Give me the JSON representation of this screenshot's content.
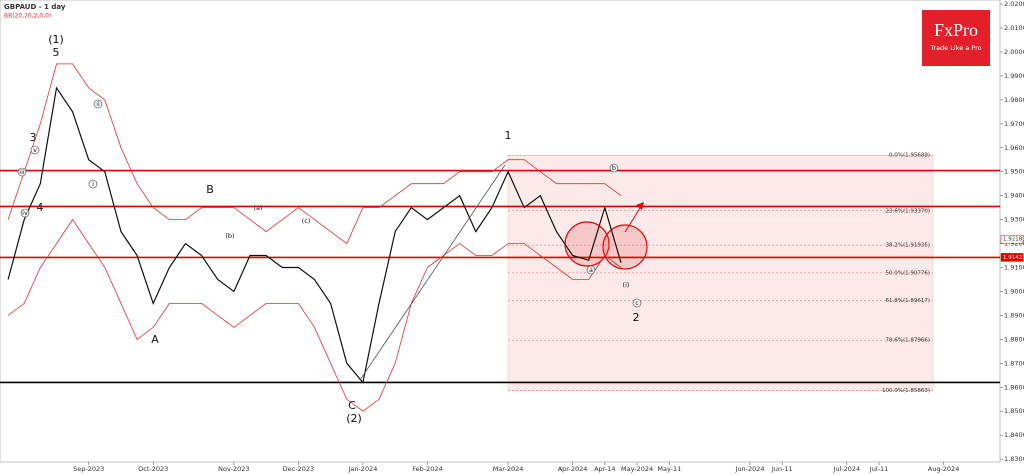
{
  "header": {
    "title": "GBPAUD - 1 day",
    "indicator": "BB(20,20,2,0,0)"
  },
  "logo": {
    "brand": "FxPro",
    "tagline": "Trade Like a Pro"
  },
  "chart_data": {
    "type": "line",
    "categories": [
      null,
      null,
      null,
      null,
      null,
      "Sep-2023",
      null,
      null,
      null,
      "Oct-2023",
      null,
      null,
      null,
      null,
      "Nov-2023",
      null,
      null,
      null,
      "Dec-2023",
      null,
      null,
      null,
      "Jan-2024",
      null,
      null,
      null,
      "Feb-2024",
      null,
      null,
      null,
      null,
      "Mar-2024",
      null,
      null,
      null,
      "Apr-2024",
      null,
      "Apr-14",
      null,
      "May-2024",
      null,
      "May-11",
      null,
      null,
      null,
      null,
      "Jun-2024",
      null,
      "Jun-11",
      null,
      null,
      null,
      "Jul-2024",
      null,
      "Jul-11",
      null,
      null,
      null,
      "Aug-2024",
      null,
      null,
      null
    ],
    "series": [
      {
        "name": "Close",
        "color": "#111111",
        "values": [
          1.905,
          1.93,
          1.945,
          1.985,
          1.975,
          1.955,
          1.95,
          1.925,
          1.915,
          1.895,
          1.91,
          1.92,
          1.915,
          1.905,
          1.9,
          1.915,
          1.915,
          1.91,
          1.91,
          1.905,
          1.895,
          1.87,
          1.862,
          1.895,
          1.925,
          1.935,
          1.93,
          1.935,
          1.94,
          1.925,
          1.935,
          1.95,
          1.935,
          1.94,
          1.925,
          1.915,
          1.913,
          1.935,
          1.912,
          null,
          null,
          null,
          null,
          null,
          null,
          null,
          null,
          null,
          null,
          null,
          null,
          null,
          null,
          null,
          null,
          null,
          null,
          null,
          null,
          null,
          null,
          null
        ]
      },
      {
        "name": "Upper band",
        "color": "#e53030",
        "values": [
          1.93,
          1.95,
          1.97,
          1.995,
          1.995,
          1.985,
          1.98,
          1.96,
          1.945,
          1.935,
          1.93,
          1.93,
          1.935,
          1.935,
          1.935,
          1.93,
          1.925,
          1.93,
          1.935,
          1.93,
          1.925,
          1.92,
          1.935,
          1.935,
          1.94,
          1.945,
          1.945,
          1.945,
          1.95,
          1.95,
          1.95,
          1.955,
          1.955,
          1.95,
          1.945,
          1.945,
          1.945,
          1.945,
          1.94,
          null,
          null,
          null,
          null,
          null,
          null,
          null,
          null,
          null,
          null,
          null,
          null,
          null,
          null,
          null,
          null,
          null,
          null,
          null,
          null,
          null,
          null,
          null
        ]
      },
      {
        "name": "Lower band",
        "color": "#e53030",
        "values": [
          1.89,
          1.895,
          1.91,
          1.92,
          1.93,
          1.92,
          1.91,
          1.895,
          1.88,
          1.885,
          1.895,
          1.895,
          1.895,
          1.89,
          1.885,
          1.89,
          1.895,
          1.895,
          1.895,
          1.885,
          1.87,
          1.855,
          1.85,
          1.855,
          1.87,
          1.895,
          1.91,
          1.915,
          1.92,
          1.915,
          1.915,
          1.92,
          1.92,
          1.915,
          1.91,
          1.905,
          1.905,
          1.915,
          1.91,
          null,
          null,
          null,
          null,
          null,
          null,
          null,
          null,
          null,
          null,
          null,
          null,
          null,
          null,
          null,
          null,
          null,
          null,
          null,
          null,
          null,
          null,
          null
        ]
      }
    ],
    "ylim": [
      1.8288,
      2.0217
    ],
    "yticks": [
      {
        "value": 1.83,
        "label": "1.83000"
      },
      {
        "value": 1.84,
        "label": "1.84000"
      },
      {
        "value": 1.85,
        "label": "1.85000"
      },
      {
        "value": 1.86,
        "label": "1.86000"
      },
      {
        "value": 1.87,
        "label": "1.87000"
      },
      {
        "value": 1.88,
        "label": "1.88000"
      },
      {
        "value": 1.89,
        "label": "1.89000"
      },
      {
        "value": 1.9,
        "label": "1.90000"
      },
      {
        "value": 1.91,
        "label": "1.91000"
      },
      {
        "value": 1.92,
        "label": "1.92000"
      },
      {
        "value": 1.93,
        "label": "1.93000"
      },
      {
        "value": 1.94,
        "label": "1.94000"
      },
      {
        "value": 1.95,
        "label": "1.95000"
      },
      {
        "value": 1.96,
        "label": "1.96000"
      },
      {
        "value": 1.97,
        "label": "1.97000"
      },
      {
        "value": 1.98,
        "label": "1.98000"
      },
      {
        "value": 1.99,
        "label": "1.99000"
      },
      {
        "value": 2.0,
        "label": "2.00000"
      },
      {
        "value": 2.01,
        "label": "2.01000"
      },
      {
        "value": 2.02,
        "label": "2.02000"
      }
    ],
    "levels": [
      {
        "value": 1.9505,
        "color": "#e00000"
      },
      {
        "value": 1.9355,
        "color": "#e00000"
      },
      {
        "value": 1.9142,
        "color": "#e00000"
      },
      {
        "value": 1.862,
        "color": "#000000"
      }
    ],
    "price_markers": [
      {
        "value": 1.92183,
        "label": "1.92183"
      },
      {
        "value": 1.91423,
        "label": "1.91423"
      }
    ],
    "fib_levels": [
      {
        "value": 1.95689,
        "label": "0.0%(1.95689)"
      },
      {
        "value": 1.9337,
        "label": "23.6%(1.93370)"
      },
      {
        "value": 1.91935,
        "label": "38.2%(1.91935)"
      },
      {
        "value": 1.90776,
        "label": "50.0%(1.90776)"
      },
      {
        "value": 1.89617,
        "label": "61.8%(1.89617)"
      },
      {
        "value": 1.87966,
        "label": "78.6%(1.87966)"
      },
      {
        "value": 1.85863,
        "label": "100.0%(1.85863)"
      }
    ],
    "annotations": [
      "(1)",
      "5",
      "3",
      "4",
      "A",
      "B",
      "C",
      "(2)",
      "1",
      "2",
      "i",
      "ii",
      "iii",
      "iv",
      "v",
      "a",
      "b",
      "c",
      "(i)",
      "(a)",
      "(b)",
      "(c)"
    ]
  }
}
